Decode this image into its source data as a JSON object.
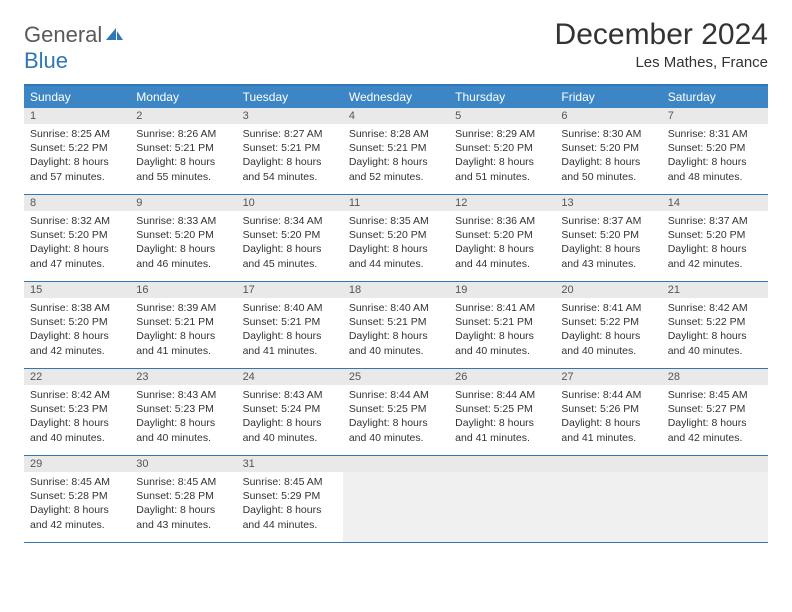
{
  "logo": {
    "text1": "General",
    "text2": "Blue"
  },
  "title": "December 2024",
  "subtitle": "Les Mathes, France",
  "colors": {
    "header_bar": "#3d86c6",
    "header_border": "#2f77b6",
    "daynum_bg": "#e9e9e9",
    "empty_bg": "#f0f0f0",
    "text": "#333333",
    "logo_gray": "#5a5a5a",
    "logo_blue": "#2f77b6"
  },
  "weekdays": [
    "Sunday",
    "Monday",
    "Tuesday",
    "Wednesday",
    "Thursday",
    "Friday",
    "Saturday"
  ],
  "weeks": [
    [
      {
        "n": "1",
        "sunrise": "8:25 AM",
        "sunset": "5:22 PM",
        "daylight": "8 hours and 57 minutes."
      },
      {
        "n": "2",
        "sunrise": "8:26 AM",
        "sunset": "5:21 PM",
        "daylight": "8 hours and 55 minutes."
      },
      {
        "n": "3",
        "sunrise": "8:27 AM",
        "sunset": "5:21 PM",
        "daylight": "8 hours and 54 minutes."
      },
      {
        "n": "4",
        "sunrise": "8:28 AM",
        "sunset": "5:21 PM",
        "daylight": "8 hours and 52 minutes."
      },
      {
        "n": "5",
        "sunrise": "8:29 AM",
        "sunset": "5:20 PM",
        "daylight": "8 hours and 51 minutes."
      },
      {
        "n": "6",
        "sunrise": "8:30 AM",
        "sunset": "5:20 PM",
        "daylight": "8 hours and 50 minutes."
      },
      {
        "n": "7",
        "sunrise": "8:31 AM",
        "sunset": "5:20 PM",
        "daylight": "8 hours and 48 minutes."
      }
    ],
    [
      {
        "n": "8",
        "sunrise": "8:32 AM",
        "sunset": "5:20 PM",
        "daylight": "8 hours and 47 minutes."
      },
      {
        "n": "9",
        "sunrise": "8:33 AM",
        "sunset": "5:20 PM",
        "daylight": "8 hours and 46 minutes."
      },
      {
        "n": "10",
        "sunrise": "8:34 AM",
        "sunset": "5:20 PM",
        "daylight": "8 hours and 45 minutes."
      },
      {
        "n": "11",
        "sunrise": "8:35 AM",
        "sunset": "5:20 PM",
        "daylight": "8 hours and 44 minutes."
      },
      {
        "n": "12",
        "sunrise": "8:36 AM",
        "sunset": "5:20 PM",
        "daylight": "8 hours and 44 minutes."
      },
      {
        "n": "13",
        "sunrise": "8:37 AM",
        "sunset": "5:20 PM",
        "daylight": "8 hours and 43 minutes."
      },
      {
        "n": "14",
        "sunrise": "8:37 AM",
        "sunset": "5:20 PM",
        "daylight": "8 hours and 42 minutes."
      }
    ],
    [
      {
        "n": "15",
        "sunrise": "8:38 AM",
        "sunset": "5:20 PM",
        "daylight": "8 hours and 42 minutes."
      },
      {
        "n": "16",
        "sunrise": "8:39 AM",
        "sunset": "5:21 PM",
        "daylight": "8 hours and 41 minutes."
      },
      {
        "n": "17",
        "sunrise": "8:40 AM",
        "sunset": "5:21 PM",
        "daylight": "8 hours and 41 minutes."
      },
      {
        "n": "18",
        "sunrise": "8:40 AM",
        "sunset": "5:21 PM",
        "daylight": "8 hours and 40 minutes."
      },
      {
        "n": "19",
        "sunrise": "8:41 AM",
        "sunset": "5:21 PM",
        "daylight": "8 hours and 40 minutes."
      },
      {
        "n": "20",
        "sunrise": "8:41 AM",
        "sunset": "5:22 PM",
        "daylight": "8 hours and 40 minutes."
      },
      {
        "n": "21",
        "sunrise": "8:42 AM",
        "sunset": "5:22 PM",
        "daylight": "8 hours and 40 minutes."
      }
    ],
    [
      {
        "n": "22",
        "sunrise": "8:42 AM",
        "sunset": "5:23 PM",
        "daylight": "8 hours and 40 minutes."
      },
      {
        "n": "23",
        "sunrise": "8:43 AM",
        "sunset": "5:23 PM",
        "daylight": "8 hours and 40 minutes."
      },
      {
        "n": "24",
        "sunrise": "8:43 AM",
        "sunset": "5:24 PM",
        "daylight": "8 hours and 40 minutes."
      },
      {
        "n": "25",
        "sunrise": "8:44 AM",
        "sunset": "5:25 PM",
        "daylight": "8 hours and 40 minutes."
      },
      {
        "n": "26",
        "sunrise": "8:44 AM",
        "sunset": "5:25 PM",
        "daylight": "8 hours and 41 minutes."
      },
      {
        "n": "27",
        "sunrise": "8:44 AM",
        "sunset": "5:26 PM",
        "daylight": "8 hours and 41 minutes."
      },
      {
        "n": "28",
        "sunrise": "8:45 AM",
        "sunset": "5:27 PM",
        "daylight": "8 hours and 42 minutes."
      }
    ],
    [
      {
        "n": "29",
        "sunrise": "8:45 AM",
        "sunset": "5:28 PM",
        "daylight": "8 hours and 42 minutes."
      },
      {
        "n": "30",
        "sunrise": "8:45 AM",
        "sunset": "5:28 PM",
        "daylight": "8 hours and 43 minutes."
      },
      {
        "n": "31",
        "sunrise": "8:45 AM",
        "sunset": "5:29 PM",
        "daylight": "8 hours and 44 minutes."
      },
      null,
      null,
      null,
      null
    ]
  ],
  "labels": {
    "sunrise": "Sunrise:",
    "sunset": "Sunset:",
    "daylight": "Daylight:"
  }
}
